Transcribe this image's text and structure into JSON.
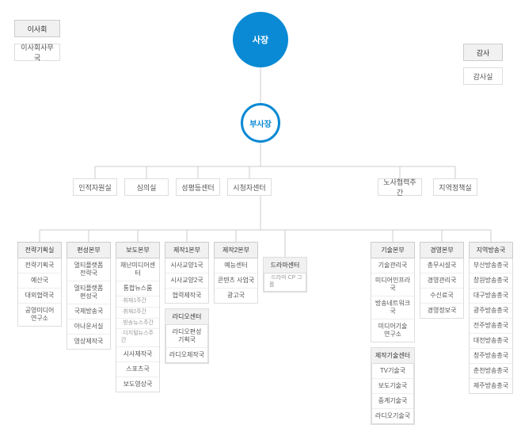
{
  "colors": {
    "accent": "#0a8ad4",
    "header_bg": "#f1f1f1",
    "border": "#dddddd",
    "text": "#555555",
    "line": "#cccccc"
  },
  "top": {
    "board": "이사회",
    "board_office": "이사회사무국",
    "president": "사장",
    "vice_president": "부사장",
    "audit": "감사",
    "audit_office": "감사실"
  },
  "row_a": [
    "인적자원실",
    "심의실",
    "성평등센터",
    "시청자센터"
  ],
  "row_a_right": [
    "노사협력주간",
    "지역정책실"
  ],
  "columns": [
    {
      "header": "전략기획실",
      "items": [
        "전략기획국",
        "예산국",
        "대외협력국",
        "공영미디어\n연구소"
      ]
    },
    {
      "header": "편성본부",
      "items": [
        "멀티플랫폼\n전략국",
        "멀티플랫폼\n편성국",
        "국제방송국",
        "아나운서실",
        "영상제작국"
      ]
    },
    {
      "header": "보도본부",
      "items": [
        "재난미디어센터",
        "통합뉴스룸"
      ],
      "subitems": [
        "·취재1주간",
        "·취재2주간",
        "·방송뉴스주간",
        "·디지털뉴스주간"
      ],
      "items2": [
        "시사제작국",
        "스포츠국",
        "보도영상국"
      ]
    },
    {
      "header": "제작1본부",
      "items": [
        "시사교양1국",
        "시사교양2국",
        "협력제작국"
      ],
      "sub": {
        "header": "라디오센터",
        "items": [
          "라디오편성\n기획국",
          "라디오제작국"
        ]
      }
    },
    {
      "header": "제작2본부",
      "items": [
        "예능센터",
        "콘텐츠 사업국",
        "광고국"
      ]
    },
    {
      "header": "",
      "items": [],
      "sub": {
        "header": "드라마센터",
        "items_sub": [
          "·드라마 CP 그룹"
        ]
      }
    },
    {
      "header": "기술본부",
      "items": [
        "기술관리국",
        "미디어인프라국",
        "방송네트워크국",
        "미디어기술\n연구소"
      ],
      "sub": {
        "header": "제작기술센터",
        "items": [
          "TV기술국",
          "보도기술국",
          "중계기술국",
          "라디오기술국"
        ]
      }
    },
    {
      "header": "경영본부",
      "items": [
        "총무시설국",
        "경영관리국",
        "수신료국",
        "경영정보국"
      ]
    },
    {
      "header": "지역방송국",
      "items": [
        "부산방송총국",
        "창원방송총국",
        "대구방송총국",
        "광주방송총국",
        "전주방송총국",
        "대전방송총국",
        "청주방송총국",
        "춘천방송총국",
        "제주방송총국"
      ]
    }
  ]
}
